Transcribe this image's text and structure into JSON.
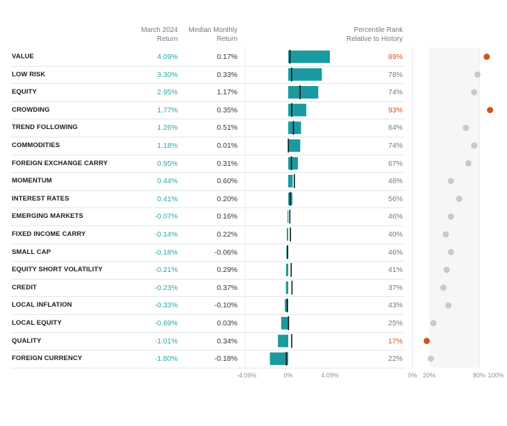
{
  "headers": {
    "march_line1": "March 2024",
    "march_line2": "Return",
    "median_line1": "Median Monthly",
    "median_line2": "Return",
    "pct_line1": "Percentile Rank",
    "pct_line2": "Relative to History"
  },
  "colors": {
    "teal": "#1a9aa0",
    "orange": "#d2541c",
    "grey_dot": "#c8c9cb",
    "text_teal": "#2aa5a5"
  },
  "chart_data": {
    "type": "table",
    "title": "",
    "bar_axis": {
      "min": -4.09,
      "max": 4.09,
      "ticks": [
        "-4.09%",
        "0%",
        "4.09%"
      ]
    },
    "percentile_axis": {
      "min": 0,
      "max": 100,
      "ticks": [
        "0%",
        "20%",
        "80%",
        "100%"
      ],
      "shaded_range": [
        20,
        80
      ]
    },
    "rows": [
      {
        "name": "VALUE",
        "return": 4.09,
        "return_label": "4.09%",
        "median": 0.17,
        "median_label": "0.17%",
        "percentile": 89,
        "percentile_label": "89%",
        "highlight": true
      },
      {
        "name": "LOW RISK",
        "return": 3.3,
        "return_label": "3.30%",
        "median": 0.33,
        "median_label": "0.33%",
        "percentile": 78,
        "percentile_label": "78%",
        "highlight": false
      },
      {
        "name": "EQUITY",
        "return": 2.95,
        "return_label": "2.95%",
        "median": 1.17,
        "median_label": "1.17%",
        "percentile": 74,
        "percentile_label": "74%",
        "highlight": false
      },
      {
        "name": "CROWDING",
        "return": 1.77,
        "return_label": "1.77%",
        "median": 0.35,
        "median_label": "0.35%",
        "percentile": 93,
        "percentile_label": "93%",
        "highlight": true
      },
      {
        "name": "TREND FOLLOWING",
        "return": 1.26,
        "return_label": "1.26%",
        "median": 0.51,
        "median_label": "0.51%",
        "percentile": 64,
        "percentile_label": "64%",
        "highlight": false
      },
      {
        "name": "COMMODITIES",
        "return": 1.18,
        "return_label": "1.18%",
        "median": 0.01,
        "median_label": "0.01%",
        "percentile": 74,
        "percentile_label": "74%",
        "highlight": false
      },
      {
        "name": "FOREIGN EXCHANGE CARRY",
        "return": 0.95,
        "return_label": "0.95%",
        "median": 0.31,
        "median_label": "0.31%",
        "percentile": 67,
        "percentile_label": "67%",
        "highlight": false
      },
      {
        "name": "MOMENTUM",
        "return": 0.44,
        "return_label": "0.44%",
        "median": 0.6,
        "median_label": "0.60%",
        "percentile": 46,
        "percentile_label": "46%",
        "highlight": false
      },
      {
        "name": "INTEREST RATES",
        "return": 0.41,
        "return_label": "0.41%",
        "median": 0.2,
        "median_label": "0.20%",
        "percentile": 56,
        "percentile_label": "56%",
        "highlight": false
      },
      {
        "name": "EMERGING MARKETS",
        "return": -0.07,
        "return_label": "-0.07%",
        "median": 0.16,
        "median_label": "0.16%",
        "percentile": 46,
        "percentile_label": "46%",
        "highlight": false
      },
      {
        "name": "FIXED INCOME CARRY",
        "return": -0.14,
        "return_label": "-0.14%",
        "median": 0.22,
        "median_label": "0.22%",
        "percentile": 40,
        "percentile_label": "40%",
        "highlight": false
      },
      {
        "name": "SMALL CAP",
        "return": -0.18,
        "return_label": "-0.18%",
        "median": -0.06,
        "median_label": "-0.06%",
        "percentile": 46,
        "percentile_label": "46%",
        "highlight": false
      },
      {
        "name": "EQUITY SHORT VOLATILITY",
        "return": -0.21,
        "return_label": "-0.21%",
        "median": 0.29,
        "median_label": "0.29%",
        "percentile": 41,
        "percentile_label": "41%",
        "highlight": false
      },
      {
        "name": "CREDIT",
        "return": -0.23,
        "return_label": "-0.23%",
        "median": 0.37,
        "median_label": "0.37%",
        "percentile": 37,
        "percentile_label": "37%",
        "highlight": false
      },
      {
        "name": "LOCAL INFLATION",
        "return": -0.33,
        "return_label": "-0.33%",
        "median": -0.1,
        "median_label": "-0.10%",
        "percentile": 43,
        "percentile_label": "43%",
        "highlight": false
      },
      {
        "name": "LOCAL EQUITY",
        "return": -0.69,
        "return_label": "-0.69%",
        "median": 0.03,
        "median_label": "0.03%",
        "percentile": 25,
        "percentile_label": "25%",
        "highlight": false
      },
      {
        "name": "QUALITY",
        "return": -1.01,
        "return_label": "-1.01%",
        "median": 0.34,
        "median_label": "0.34%",
        "percentile": 17,
        "percentile_label": "17%",
        "highlight": true
      },
      {
        "name": "FOREIGN CURRENCY",
        "return": -1.8,
        "return_label": "-1.80%",
        "median": -0.18,
        "median_label": "-0.18%",
        "percentile": 22,
        "percentile_label": "22%",
        "highlight": false
      }
    ]
  }
}
